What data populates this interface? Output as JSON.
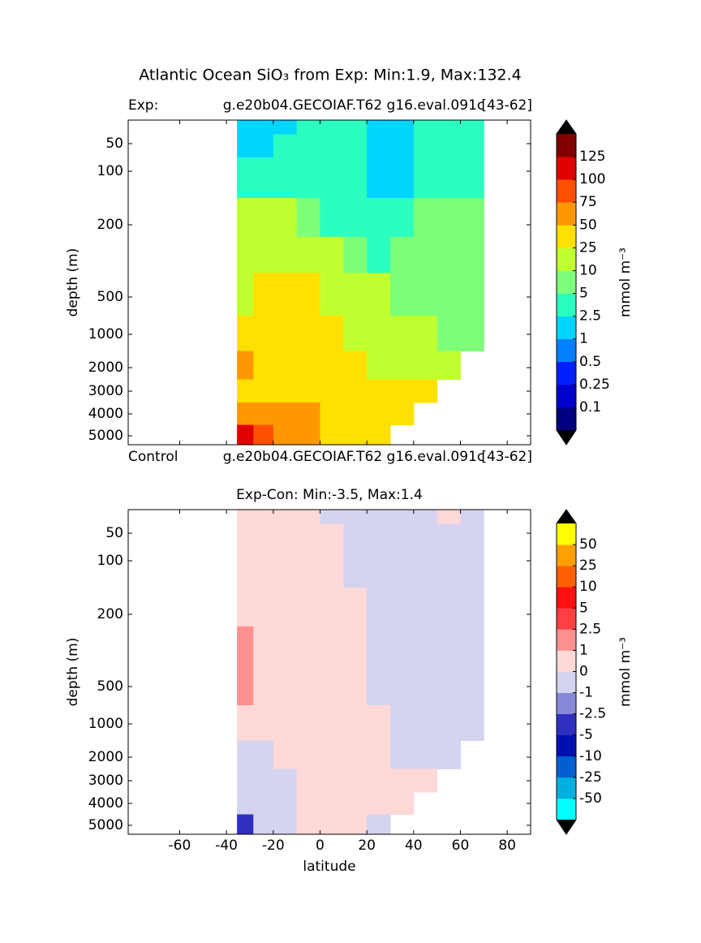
{
  "title": "Atlantic Ocean SiO₃  from Exp: Min:1.9, Max:132.4",
  "chart_data": [
    {
      "type": "contourf",
      "title_left": "Exp:",
      "title_center": "g.e20b04.GECOIAF.T62 g16.eval.091c",
      "title_right": "[43-62]",
      "footer_left": "Control",
      "footer_center": "g.e20b04.GECOIAF.T62 g16.eval.091c",
      "footer_right": "[43-62]",
      "ylabel": "depth (m)",
      "colorbar_label": "mmol m⁻³",
      "xlim": [
        -82,
        90
      ],
      "xticks": [
        -60,
        -40,
        -20,
        0,
        20,
        40,
        60,
        80
      ],
      "ylim": [
        0,
        5400
      ],
      "yticks": [
        50,
        100,
        200,
        500,
        1000,
        2000,
        3000,
        4000,
        5000
      ],
      "x": [
        -32,
        -25,
        -15,
        -5,
        5,
        15,
        25,
        35,
        45,
        55,
        65
      ],
      "y": [
        10,
        50,
        100,
        200,
        300,
        500,
        1000,
        2000,
        3000,
        4000,
        5000
      ],
      "z": [
        [
          1.5,
          1.5,
          2,
          3,
          3,
          3,
          1.5,
          1.5,
          3,
          3,
          3
        ],
        [
          1.8,
          2,
          3,
          3,
          3,
          3,
          1.5,
          1.5,
          3,
          3.5,
          4
        ],
        [
          4,
          3,
          3,
          3,
          3.5,
          3.5,
          2,
          2,
          4,
          4,
          4
        ],
        [
          15,
          12,
          12,
          8,
          4,
          4,
          3,
          4,
          6,
          6,
          5
        ],
        [
          20,
          20,
          20,
          15,
          10,
          8,
          4,
          6,
          7,
          7,
          6
        ],
        [
          12,
          30,
          30,
          30,
          15,
          12,
          10,
          8,
          8,
          8,
          7
        ],
        [
          30,
          30,
          35,
          30,
          25,
          20,
          14,
          12,
          10,
          8,
          7
        ],
        [
          55,
          35,
          35,
          30,
          28,
          25,
          20,
          18,
          15,
          12,
          null
        ],
        [
          45,
          40,
          40,
          35,
          35,
          30,
          30,
          28,
          25,
          null,
          null
        ],
        [
          60,
          55,
          55,
          50,
          40,
          35,
          30,
          28,
          null,
          null,
          null
        ],
        [
          110,
          80,
          60,
          60,
          45,
          35,
          30,
          null,
          null,
          null,
          null
        ]
      ],
      "levels": [
        0.1,
        0.25,
        0.5,
        1,
        2.5,
        5,
        10,
        25,
        50,
        75,
        100,
        125
      ],
      "colors": [
        "#000080",
        "#0000cd",
        "#0020ff",
        "#0080ff",
        "#00d4ff",
        "#2affc0",
        "#7dff7a",
        "#c0ff30",
        "#ffe000",
        "#ff9800",
        "#ff5000",
        "#e00000",
        "#800000"
      ]
    },
    {
      "type": "contourf",
      "title": "Exp-Con: Min:-3.5, Max:1.4",
      "xlabel": "latitude",
      "ylabel": "depth (m)",
      "colorbar_label": "mmol m⁻³",
      "xlim": [
        -82,
        90
      ],
      "xticks": [
        -60,
        -40,
        -20,
        0,
        20,
        40,
        60,
        80
      ],
      "ylim": [
        0,
        5400
      ],
      "yticks": [
        50,
        100,
        200,
        500,
        1000,
        2000,
        3000,
        4000,
        5000
      ],
      "x": [
        -32,
        -25,
        -15,
        -5,
        5,
        15,
        25,
        35,
        45,
        55,
        65
      ],
      "y": [
        10,
        50,
        100,
        200,
        300,
        500,
        1000,
        2000,
        3000,
        4000,
        5000
      ],
      "z": [
        [
          0.3,
          0.3,
          0.3,
          0.3,
          -0.2,
          -0.2,
          -0.2,
          -0.2,
          -0.2,
          0.3,
          -0.2
        ],
        [
          0.3,
          0.3,
          0.3,
          0.3,
          0.2,
          -0.2,
          -0.2,
          -0.2,
          -0.2,
          -0.2,
          -0.2
        ],
        [
          0.3,
          0.3,
          0.3,
          0.3,
          0.3,
          -0.2,
          -0.2,
          -0.2,
          -0.2,
          -0.2,
          -0.2
        ],
        [
          0.5,
          0.3,
          0.3,
          0.3,
          0.3,
          0.3,
          -0.2,
          -0.2,
          -0.2,
          -0.2,
          -0.2
        ],
        [
          1.5,
          0.5,
          0.3,
          0.3,
          0.3,
          0.3,
          -0.2,
          -0.2,
          -0.2,
          -0.2,
          -0.2
        ],
        [
          1.2,
          0.3,
          0.3,
          0.3,
          0.3,
          0.3,
          -0.2,
          -0.2,
          -0.2,
          -0.2,
          -0.2
        ],
        [
          0.3,
          0.3,
          0.3,
          0.3,
          0.3,
          0.3,
          0.2,
          -0.2,
          -0.2,
          -0.2,
          -0.2
        ],
        [
          -0.3,
          -0.3,
          0.3,
          0.3,
          0.3,
          0.3,
          0.3,
          -0.2,
          -0.2,
          -0.2,
          null
        ],
        [
          -0.3,
          -0.3,
          -0.3,
          0.3,
          0.3,
          0.3,
          0.3,
          0.3,
          0.3,
          null,
          null
        ],
        [
          -0.3,
          -0.3,
          -0.2,
          0.3,
          0.3,
          0.3,
          0.3,
          0.3,
          null,
          null,
          null
        ],
        [
          -3,
          -0.3,
          -0.2,
          0.3,
          0.3,
          0.3,
          -0.2,
          null,
          null,
          null,
          null
        ]
      ],
      "levels": [
        -50,
        -25,
        -10,
        -5,
        -2.5,
        -1,
        0,
        1,
        2.5,
        5,
        10,
        25,
        50
      ],
      "colors": [
        "#00ffff",
        "#00b0e0",
        "#0060d0",
        "#0010b0",
        "#3030c0",
        "#8888d8",
        "#d4d4f0",
        "#ffd8d8",
        "#ff9090",
        "#ff4040",
        "#ff1010",
        "#ff6000",
        "#ffa000",
        "#ffff00"
      ]
    }
  ]
}
